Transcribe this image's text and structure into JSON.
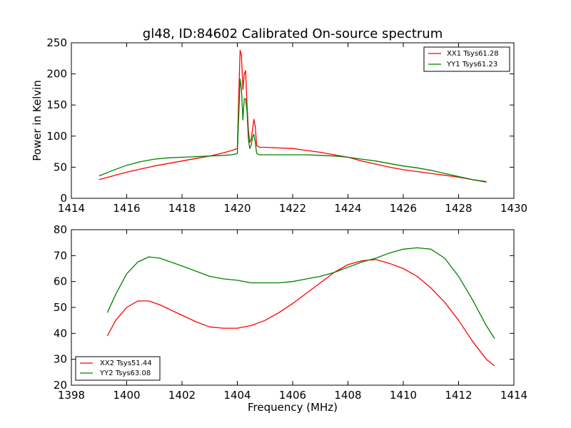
{
  "chart_data": [
    {
      "type": "line",
      "title": "gl48, ID:84602 Calibrated On-source spectrum",
      "xlabel": "",
      "ylabel": "Power in Kelvin",
      "xlim": [
        1414,
        1430
      ],
      "ylim": [
        0,
        250
      ],
      "xticks": [
        "1414",
        "1416",
        "1418",
        "1420",
        "1422",
        "1424",
        "1426",
        "1428",
        "1430"
      ],
      "yticks": [
        "0",
        "50",
        "100",
        "150",
        "200",
        "250"
      ],
      "legend_position": "top-right",
      "grid": false,
      "series": [
        {
          "name": "XX1 Tsys61.28",
          "color": "#ff0000",
          "x": [
            1415.0,
            1415.5,
            1416.0,
            1416.5,
            1417.0,
            1417.5,
            1418.0,
            1418.5,
            1419.0,
            1419.5,
            1419.8,
            1420.0,
            1420.05,
            1420.1,
            1420.15,
            1420.2,
            1420.25,
            1420.3,
            1420.35,
            1420.4,
            1420.45,
            1420.5,
            1420.55,
            1420.6,
            1420.65,
            1420.7,
            1420.8,
            1421.0,
            1421.5,
            1422.0,
            1422.5,
            1423.0,
            1423.5,
            1424.0,
            1424.5,
            1425.0,
            1425.5,
            1426.0,
            1426.5,
            1427.0,
            1427.5,
            1428.0,
            1428.5,
            1429.0
          ],
          "y": [
            30,
            36,
            42,
            47,
            52,
            56,
            60,
            64,
            68,
            73,
            77,
            80,
            160,
            238,
            230,
            175,
            200,
            205,
            150,
            110,
            90,
            95,
            110,
            127,
            115,
            85,
            82,
            82,
            81,
            80,
            77,
            74,
            70,
            66,
            60,
            55,
            50,
            46,
            43,
            40,
            37,
            34,
            30,
            26
          ]
        },
        {
          "name": "YY1 Tsys61.23",
          "color": "#008000",
          "x": [
            1415.0,
            1415.5,
            1416.0,
            1416.5,
            1417.0,
            1417.5,
            1418.0,
            1418.5,
            1419.0,
            1419.5,
            1419.8,
            1420.0,
            1420.05,
            1420.1,
            1420.15,
            1420.2,
            1420.25,
            1420.3,
            1420.35,
            1420.4,
            1420.45,
            1420.5,
            1420.55,
            1420.6,
            1420.65,
            1420.7,
            1420.8,
            1421.0,
            1421.5,
            1422.0,
            1422.5,
            1423.0,
            1423.5,
            1424.0,
            1424.5,
            1425.0,
            1425.5,
            1426.0,
            1426.5,
            1427.0,
            1427.5,
            1428.0,
            1428.5,
            1429.0
          ],
          "y": [
            36,
            45,
            53,
            59,
            63,
            65,
            66,
            67,
            68,
            69,
            70,
            72,
            130,
            192,
            175,
            126,
            160,
            160,
            140,
            95,
            80,
            85,
            98,
            103,
            90,
            72,
            70,
            70,
            70,
            70,
            70,
            69,
            68,
            66,
            63,
            60,
            56,
            52,
            49,
            45,
            40,
            35,
            30,
            27
          ]
        }
      ]
    },
    {
      "type": "line",
      "title": "",
      "xlabel": "Frequency (MHz)",
      "ylabel": "",
      "xlim": [
        1398,
        1414
      ],
      "ylim": [
        20,
        80
      ],
      "xticks": [
        "1398",
        "1400",
        "1402",
        "1404",
        "1406",
        "1408",
        "1410",
        "1412",
        "1414"
      ],
      "yticks": [
        "20",
        "30",
        "40",
        "50",
        "60",
        "70",
        "80"
      ],
      "legend_position": "bottom-left",
      "grid": false,
      "series": [
        {
          "name": "XX2 Tsys51.44",
          "color": "#ff0000",
          "x": [
            1399.3,
            1399.6,
            1400.0,
            1400.4,
            1400.8,
            1401.2,
            1401.6,
            1402.0,
            1402.5,
            1403.0,
            1403.5,
            1404.0,
            1404.5,
            1405.0,
            1405.5,
            1406.0,
            1406.5,
            1407.0,
            1407.5,
            1408.0,
            1408.5,
            1409.0,
            1409.5,
            1410.0,
            1410.5,
            1411.0,
            1411.5,
            1412.0,
            1412.5,
            1413.0,
            1413.3
          ],
          "y": [
            39,
            45,
            50,
            52.5,
            52.5,
            51,
            49,
            47,
            44.5,
            42.5,
            42,
            42,
            43,
            45,
            48,
            51.5,
            55.5,
            59.5,
            63.5,
            66.5,
            68,
            68.5,
            67,
            65,
            62,
            57.5,
            52,
            45,
            37,
            30,
            27.5
          ]
        },
        {
          "name": "YY2 Tsys63.08",
          "color": "#008000",
          "x": [
            1399.3,
            1399.6,
            1400.0,
            1400.4,
            1400.8,
            1401.2,
            1401.6,
            1402.0,
            1402.5,
            1403.0,
            1403.5,
            1404.0,
            1404.5,
            1405.0,
            1405.5,
            1406.0,
            1406.5,
            1407.0,
            1407.5,
            1408.0,
            1408.5,
            1409.0,
            1409.5,
            1410.0,
            1410.5,
            1411.0,
            1411.5,
            1412.0,
            1412.5,
            1413.0,
            1413.3
          ],
          "y": [
            48,
            55,
            63,
            67.5,
            69.5,
            69,
            67.5,
            66,
            64,
            62,
            61,
            60.5,
            59.5,
            59.5,
            59.5,
            60,
            61,
            62,
            63.5,
            65.5,
            67.5,
            69,
            71,
            72.5,
            73,
            72.5,
            69,
            62,
            53,
            43,
            38
          ]
        }
      ]
    }
  ]
}
